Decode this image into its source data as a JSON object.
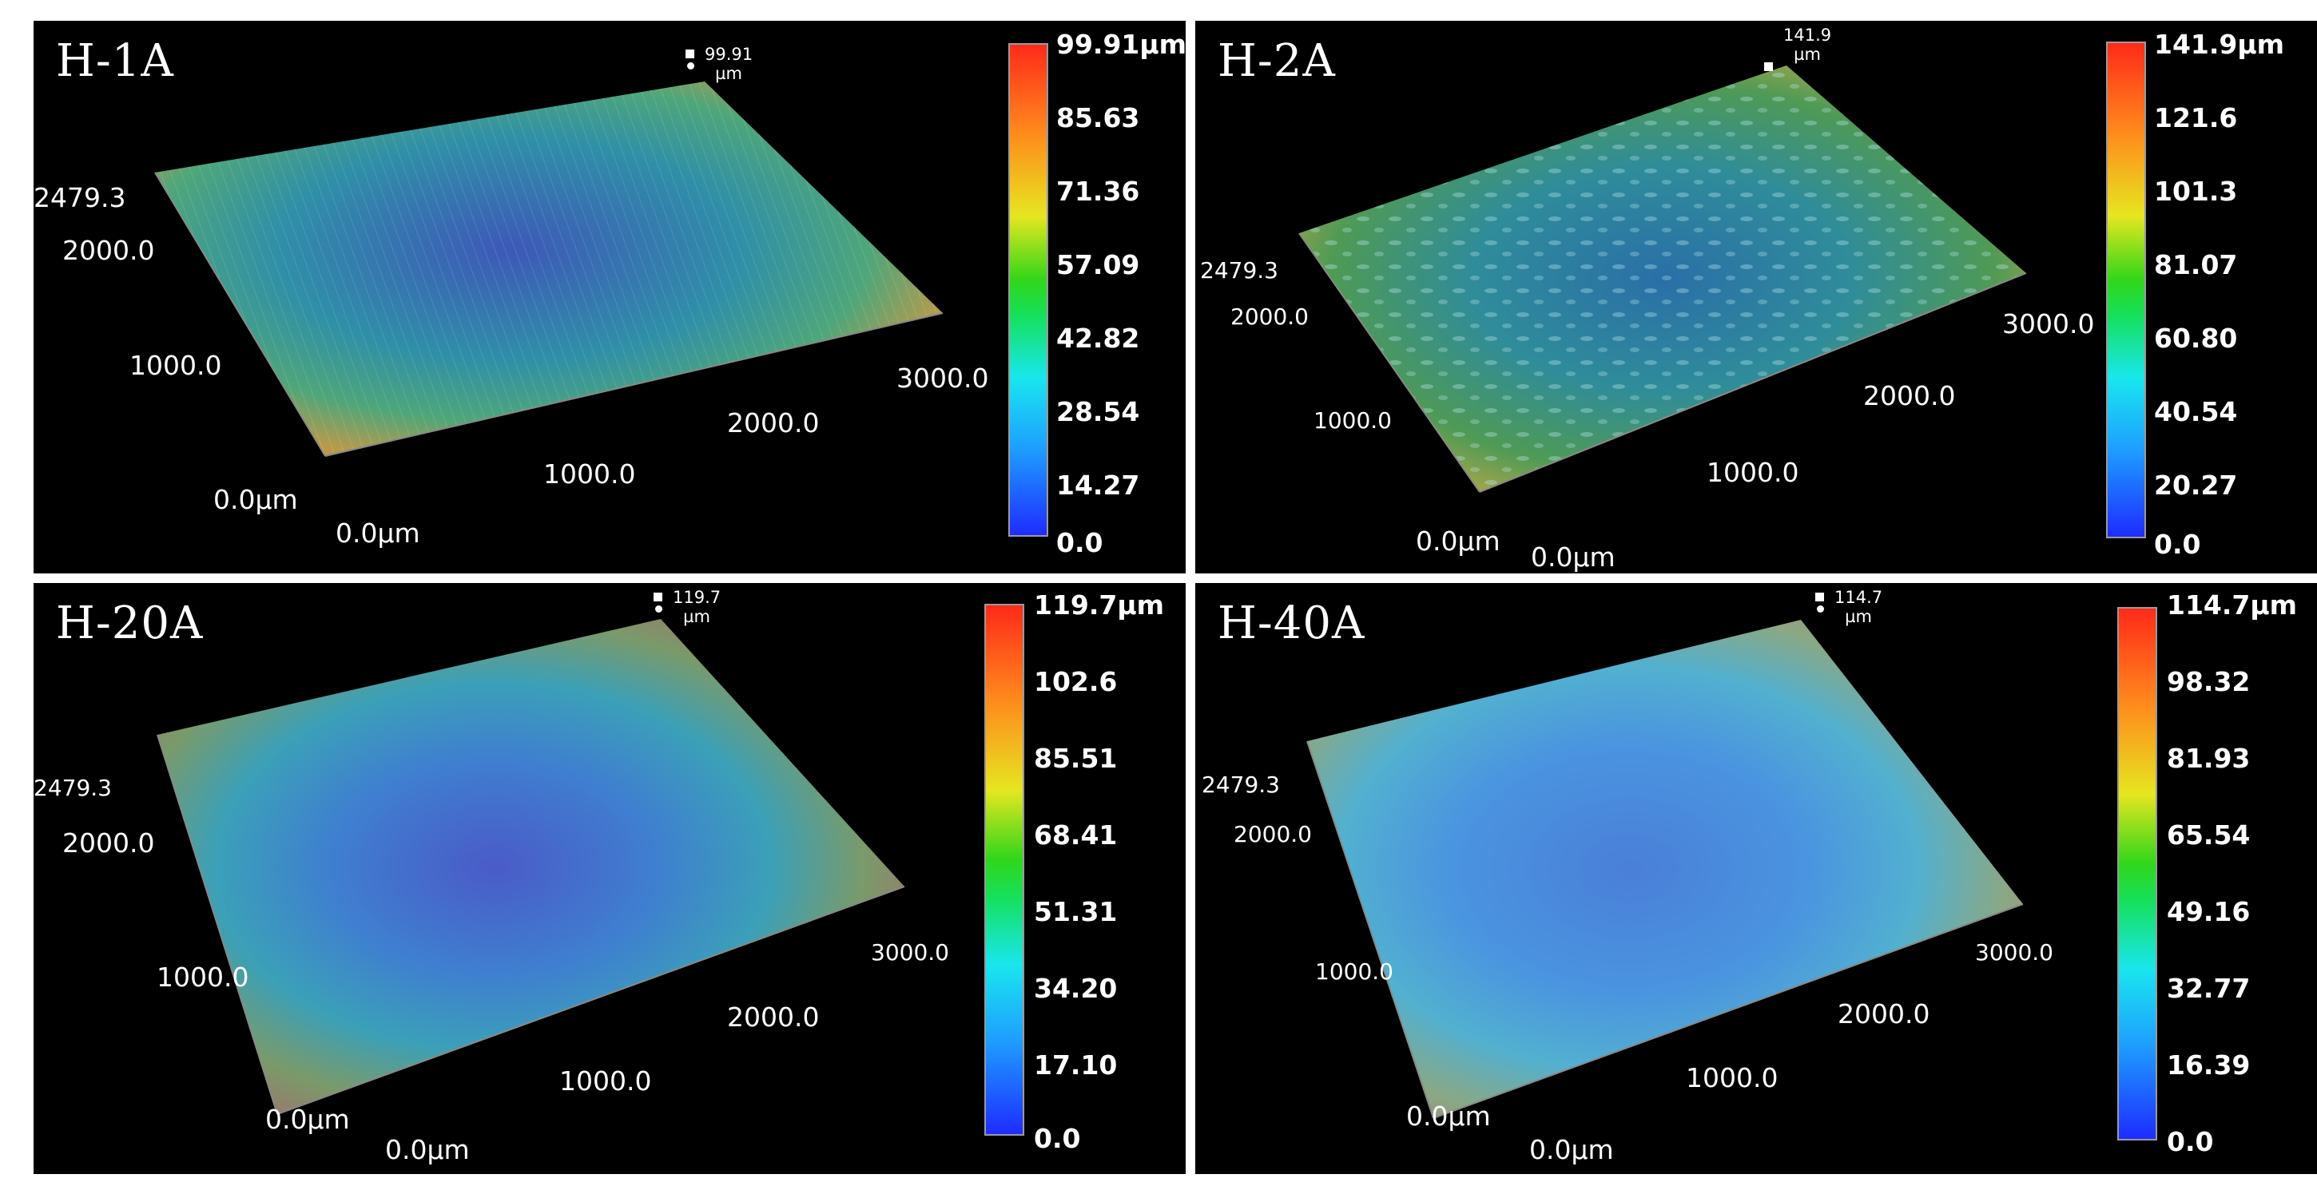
{
  "panels": [
    {
      "title": "H-1A",
      "z_top": "99.91",
      "z_unit": "µm",
      "y_axis": [
        "2479.3",
        "2000.0",
        "1000.0",
        "0.0µm"
      ],
      "x_axis": [
        "0.0µm",
        "1000.0",
        "2000.0",
        "3000.0"
      ],
      "colorbar": [
        "99.91µm",
        "85.63",
        "71.36",
        "57.09",
        "42.82",
        "28.54",
        "14.27",
        "0.0"
      ]
    },
    {
      "title": "H-2A",
      "z_top": "141.9",
      "z_unit": "µm",
      "y_axis": [
        "2479.3",
        "2000.0",
        "1000.0",
        "0.0µm"
      ],
      "x_axis": [
        "0.0µm",
        "1000.0",
        "2000.0",
        "3000.0"
      ],
      "colorbar": [
        "141.9µm",
        "121.6",
        "101.3",
        "81.07",
        "60.80",
        "40.54",
        "20.27",
        "0.0"
      ]
    },
    {
      "title": "H-20A",
      "z_top": "119.7",
      "z_unit": "µm",
      "y_axis": [
        "2479.3",
        "2000.0",
        "1000.0",
        "0.0µm"
      ],
      "x_axis": [
        "0.0µm",
        "1000.0",
        "2000.0",
        "3000.0"
      ],
      "colorbar": [
        "119.7µm",
        "102.6",
        "85.51",
        "68.41",
        "51.31",
        "34.20",
        "17.10",
        "0.0"
      ]
    },
    {
      "title": "H-40A",
      "z_top": "114.7",
      "z_unit": "µm",
      "y_axis": [
        "2479.3",
        "2000.0",
        "1000.0",
        "0.0µm"
      ],
      "x_axis": [
        "0.0µm",
        "1000.0",
        "2000.0",
        "3000.0"
      ],
      "colorbar": [
        "114.7µm",
        "98.32",
        "81.93",
        "65.54",
        "49.16",
        "32.77",
        "16.39",
        "0.0"
      ]
    }
  ]
}
